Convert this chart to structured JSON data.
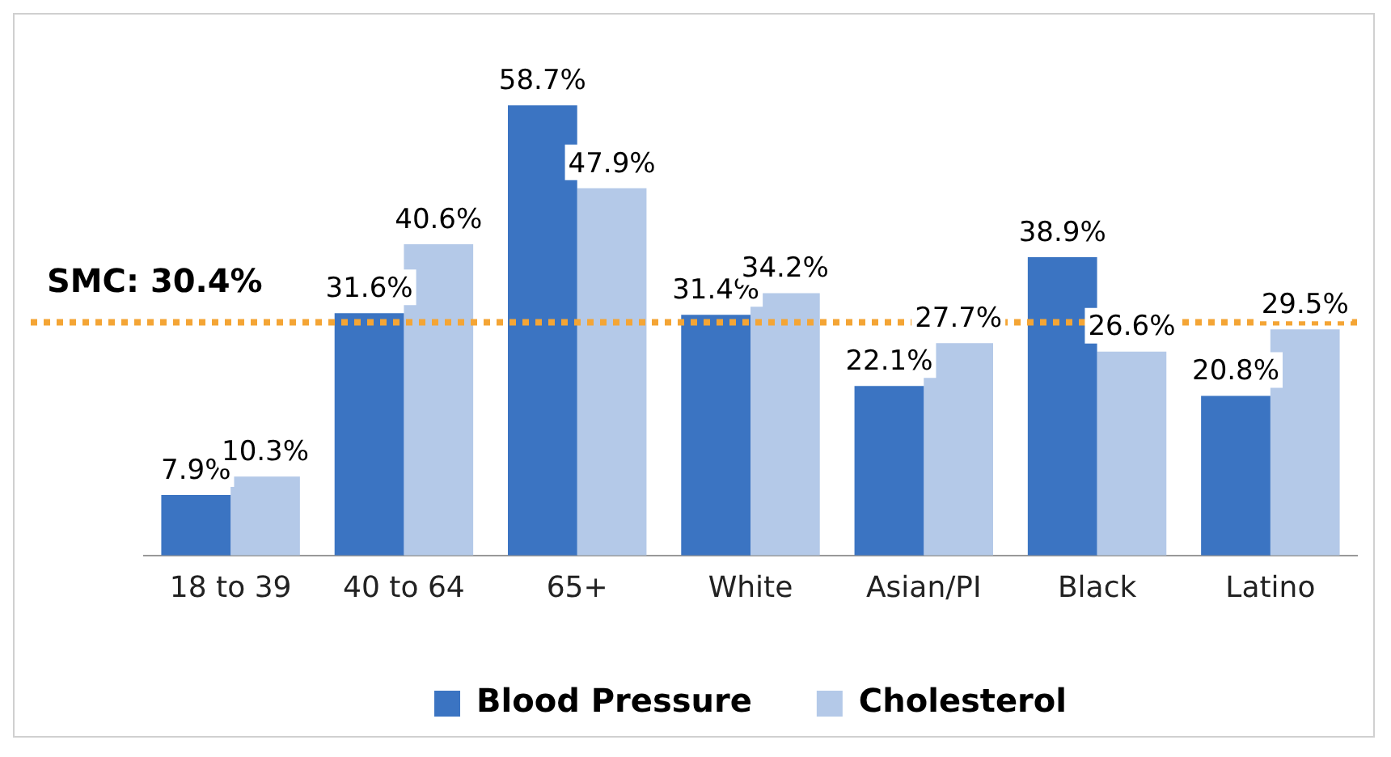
{
  "chart_data": {
    "type": "bar",
    "categories": [
      "18 to 39",
      "40 to 64",
      "65+",
      "White",
      "Asian/PI",
      "Black",
      "Latino"
    ],
    "series": [
      {
        "name": "Blood Pressure",
        "color": "#3b74c2",
        "values": [
          7.9,
          31.6,
          58.7,
          31.4,
          22.1,
          38.9,
          20.8
        ],
        "value_labels": [
          "7.9%",
          "31.6%",
          "58.7%",
          "31.4%",
          "22.1%",
          "38.9%",
          "20.8%"
        ]
      },
      {
        "name": "Cholesterol",
        "color": "#b4c9e8",
        "values": [
          10.3,
          40.6,
          47.9,
          34.2,
          27.7,
          26.6,
          29.5
        ],
        "value_labels": [
          "10.3%",
          "40.6%",
          "47.9%",
          "34.2%",
          "27.7%",
          "26.6%",
          "29.5%"
        ]
      }
    ],
    "ref_lines": [
      {
        "axis": "y",
        "value": 30.4,
        "label": "SMC: 30.4%",
        "color": "#f4a535",
        "line_style": "dotted"
      }
    ],
    "legend": "bottom",
    "grid": false,
    "tick_labels": "x"
  }
}
